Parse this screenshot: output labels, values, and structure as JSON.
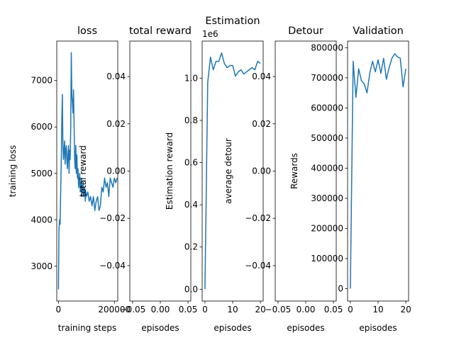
{
  "chart_data": [
    {
      "type": "line",
      "title": "loss",
      "xlabel": "training steps",
      "ylabel": "training loss",
      "xlim": [
        -6000,
        212000
      ],
      "ylim": [
        2250,
        7850
      ],
      "xticks": [
        0,
        200000
      ],
      "xtick_labels": [
        "0",
        "200000"
      ],
      "yticks": [
        3000,
        4000,
        5000,
        6000,
        7000
      ],
      "ytick_labels": [
        "3000",
        "4000",
        "5000",
        "6000",
        "7000"
      ],
      "color": "#1f77b4",
      "series": [
        {
          "x": [
            0,
            2000,
            4000,
            6000,
            8000,
            10000,
            12000,
            14000,
            16000,
            18000,
            20000,
            22000,
            24000,
            26000,
            28000,
            30000,
            32000,
            34000,
            36000,
            38000,
            40000,
            42000,
            44000,
            46000,
            48000,
            50000,
            52000,
            54000,
            56000,
            58000,
            60000,
            62000,
            64000,
            66000,
            68000,
            70000,
            72000,
            74000,
            76000,
            78000,
            80000,
            82000,
            84000,
            86000,
            88000,
            90000,
            92000,
            94000,
            96000,
            98000,
            100000,
            105000,
            110000,
            115000,
            120000,
            125000,
            130000,
            135000,
            140000,
            145000,
            150000,
            155000,
            160000,
            165000,
            170000,
            175000,
            180000,
            185000,
            190000,
            195000,
            200000,
            205000,
            210000
          ],
          "y": [
            2500,
            3800,
            4000,
            3900,
            4600,
            5200,
            6100,
            6700,
            5600,
            5300,
            5500,
            5700,
            5200,
            5500,
            5600,
            5300,
            5100,
            5400,
            5600,
            5000,
            5500,
            5300,
            6000,
            7600,
            6700,
            6500,
            6300,
            6800,
            6000,
            5300,
            5100,
            5600,
            5000,
            5400,
            4900,
            5100,
            4700,
            4800,
            5000,
            4600,
            4700,
            4900,
            4500,
            4700,
            4800,
            4500,
            4600,
            4700,
            4400,
            4600,
            4500,
            4600,
            4400,
            4500,
            4300,
            4500,
            4200,
            4400,
            4500,
            4200,
            4300,
            4700,
            4600,
            4900,
            4700,
            4800,
            4500,
            4900,
            4800,
            4700,
            4900,
            4800,
            4900
          ]
        }
      ]
    },
    {
      "type": "line",
      "title": "total reward",
      "xlabel": "episodes",
      "ylabel": "total reward",
      "xlim": [
        -0.055,
        0.055
      ],
      "ylim": [
        -0.055,
        0.055
      ],
      "xticks": [
        -0.05,
        0,
        0.05
      ],
      "xtick_labels": [
        "−0.05",
        "0.00",
        "0.05"
      ],
      "yticks": [
        -0.04,
        -0.02,
        0,
        0.02,
        0.04
      ],
      "ytick_labels": [
        "−0.04",
        "−0.02",
        "0.00",
        "0.02",
        "0.04"
      ],
      "series": []
    },
    {
      "type": "line",
      "title": "Estimation",
      "xlabel": "episodes",
      "ylabel": "Estimation reward",
      "scale_label": "1e6",
      "xlim": [
        -1,
        21
      ],
      "ylim": [
        -0.056,
        1.176
      ],
      "xticks": [
        0,
        10,
        20
      ],
      "xtick_labels": [
        "0",
        "10",
        "20"
      ],
      "yticks": [
        0,
        0.2,
        0.4,
        0.6,
        0.8,
        1.0
      ],
      "ytick_labels": [
        "0.0",
        "0.2",
        "0.4",
        "0.6",
        "0.8",
        "1.0"
      ],
      "color": "#1f77b4",
      "series": [
        {
          "x": [
            0,
            1,
            2,
            3,
            4,
            5,
            6,
            7,
            8,
            9,
            10,
            11,
            12,
            13,
            14,
            15,
            16,
            17,
            18,
            19,
            20
          ],
          "y": [
            0,
            0.98,
            1.1,
            1.04,
            1.08,
            1.08,
            1.12,
            1.07,
            1.05,
            1.06,
            1.06,
            1.01,
            1.03,
            1.04,
            1.02,
            1.03,
            1.04,
            1.05,
            1.04,
            1.08,
            1.07
          ]
        }
      ]
    },
    {
      "type": "line",
      "title": "Detour",
      "xlabel": "episodes",
      "ylabel": "average detour",
      "xlim": [
        -0.055,
        0.055
      ],
      "ylim": [
        -0.055,
        0.055
      ],
      "xticks": [
        -0.05,
        0,
        0.05
      ],
      "xtick_labels": [
        "−0.05",
        "0.00",
        "0.05"
      ],
      "yticks": [
        -0.04,
        -0.02,
        0,
        0.02,
        0.04
      ],
      "ytick_labels": [
        "−0.04",
        "−0.02",
        "0.00",
        "0.02",
        "0.04"
      ],
      "series": []
    },
    {
      "type": "line",
      "title": "Validation",
      "xlabel": "episodes",
      "ylabel": "Rewards",
      "xlim": [
        -1,
        21
      ],
      "ylim": [
        -41000,
        822000
      ],
      "xticks": [
        0,
        10,
        20
      ],
      "xtick_labels": [
        "0",
        "10",
        "20"
      ],
      "yticks": [
        0,
        100000,
        200000,
        300000,
        400000,
        500000,
        600000,
        700000,
        800000
      ],
      "ytick_labels": [
        "0",
        "100000",
        "200000",
        "300000",
        "400000",
        "500000",
        "600000",
        "700000",
        "800000"
      ],
      "color": "#1f77b4",
      "series": [
        {
          "x": [
            0,
            1,
            2,
            3,
            4,
            5,
            6,
            7,
            8,
            9,
            10,
            11,
            12,
            13,
            14,
            15,
            16,
            17,
            18,
            19,
            20
          ],
          "y": [
            0,
            755000,
            635000,
            730000,
            690000,
            680000,
            650000,
            715000,
            755000,
            720000,
            760000,
            715000,
            765000,
            695000,
            735000,
            765000,
            780000,
            770000,
            765000,
            670000,
            730000
          ]
        }
      ]
    }
  ]
}
